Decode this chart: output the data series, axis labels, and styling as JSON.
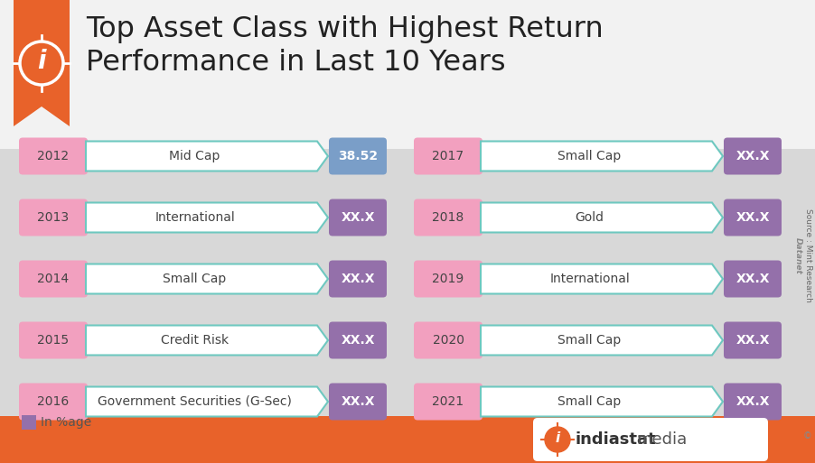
{
  "title_line1": "Top Asset Class with Highest Return",
  "title_line2": "Performance in Last 10 Years",
  "background_color": "#d8d8d8",
  "header_bg": "#f0f0f0",
  "rows_left": [
    {
      "year": "2012",
      "asset": "Mid Cap",
      "value": "38.52"
    },
    {
      "year": "2013",
      "asset": "International",
      "value": "XX.X"
    },
    {
      "year": "2014",
      "asset": "Small Cap",
      "value": "XX.X"
    },
    {
      "year": "2015",
      "asset": "Credit Risk",
      "value": "XX.X"
    },
    {
      "year": "2016",
      "asset": "Government Securities (G-Sec)",
      "value": "XX.X"
    }
  ],
  "rows_right": [
    {
      "year": "2017",
      "asset": "Small Cap",
      "value": "XX.X"
    },
    {
      "year": "2018",
      "asset": "Gold",
      "value": "XX.X"
    },
    {
      "year": "2019",
      "asset": "International",
      "value": "XX.X"
    },
    {
      "year": "2020",
      "asset": "Small Cap",
      "value": "XX.X"
    },
    {
      "year": "2021",
      "asset": "Small Cap",
      "value": "XX.X"
    }
  ],
  "year_badge_color": "#f2a0bf",
  "year_text_color": "#444444",
  "arrow_fill_color": "#ffffff",
  "arrow_border_color": "#6ec8c0",
  "value_box_color_2012": "#7a9ec8",
  "value_box_color_rest": "#9470aa",
  "value_text_color": "#ffffff",
  "asset_text_color": "#444444",
  "legend_color": "#9470aa",
  "legend_text": "In %age",
  "footer_color": "#e8622a",
  "title_color": "#222222"
}
